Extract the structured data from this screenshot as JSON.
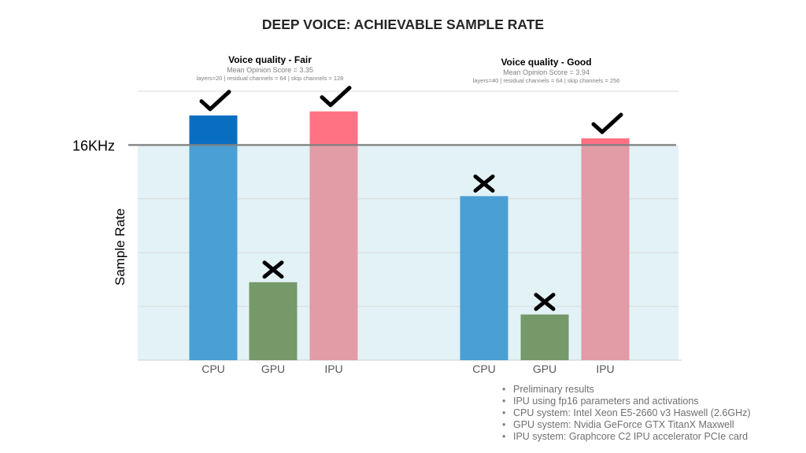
{
  "chart_data": {
    "type": "bar",
    "title": "DEEP VOICE: ACHIEVABLE SAMPLE RATE",
    "ylabel": "Sample Rate",
    "reference_line": {
      "label": "16KHz",
      "value": 16
    },
    "ylim": [
      0,
      20
    ],
    "grid": true,
    "colors": {
      "CPU": "#4a9fd4",
      "GPU": "#76996a",
      "IPU": "#e29ca6",
      "CPU_over": "#0a6ec0",
      "IPU_over": "#ff7283",
      "reference_line": "#7f7f7f",
      "below_region": "#e2f2f6"
    },
    "groups": [
      {
        "heading": "Voice quality - Fair",
        "subheading": "Mean Opinion Score = 3.35",
        "params": "layers=20 | residual channels = 64 | skip channels = 128",
        "categories": [
          "CPU",
          "GPU",
          "IPU"
        ],
        "values": [
          18.2,
          5.8,
          18.5
        ],
        "marks": [
          "check",
          "cross",
          "check"
        ]
      },
      {
        "heading": "Voice quality - Good",
        "subheading": "Mean Opinion Score = 3.94",
        "params": "layers=40 | residual channels = 64 | skip channels = 256",
        "categories": [
          "CPU",
          "GPU",
          "IPU"
        ],
        "values": [
          12.2,
          3.4,
          16.5
        ],
        "marks": [
          "cross",
          "cross",
          "check"
        ]
      }
    ]
  },
  "notes": [
    "Preliminary results",
    "IPU using fp16 parameters and activations",
    "CPU system: Intel Xeon E5-2660 v3 Haswell (2.6GHz)",
    "GPU system: Nvidia GeForce GTX TitanX Maxwell",
    "IPU system: Graphcore C2 IPU accelerator PCIe card"
  ]
}
